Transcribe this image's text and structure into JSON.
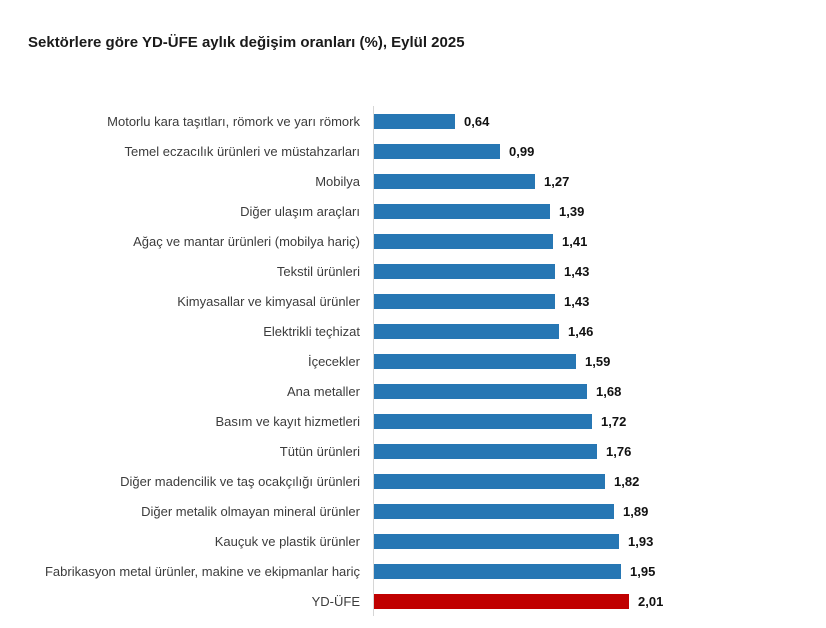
{
  "title": "Sektörlere göre YD-ÜFE aylık değişim oranları (%), Eylül 2025",
  "chart_data": {
    "type": "bar",
    "orientation": "horizontal",
    "title": "Sektörlere göre YD-ÜFE aylık değişim oranları (%), Eylül 2025",
    "xlabel": "",
    "ylabel": "",
    "xlim": [
      0,
      2.1
    ],
    "grid": false,
    "legend": false,
    "categories": [
      "Motorlu kara taşıtları, römork ve yarı römork",
      "Temel eczacılık ürünleri ve müstahzarları",
      "Mobilya",
      "Diğer ulaşım araçları",
      "Ağaç ve mantar ürünleri (mobilya hariç)",
      "Tekstil ürünleri",
      "Kimyasallar ve kimyasal ürünler",
      "Elektrikli teçhizat",
      "İçecekler",
      "Ana metaller",
      "Basım ve kayıt hizmetleri",
      "Tütün ürünleri",
      "Diğer madencilik ve taş ocakçılığı ürünleri",
      "Diğer metalik olmayan mineral ürünler",
      "Kauçuk ve plastik ürünler",
      "Fabrikasyon metal ürünler, makine ve ekipmanlar hariç",
      "YD-ÜFE"
    ],
    "values": [
      0.64,
      0.99,
      1.27,
      1.39,
      1.41,
      1.43,
      1.43,
      1.46,
      1.59,
      1.68,
      1.72,
      1.76,
      1.82,
      1.89,
      1.93,
      1.95,
      2.01
    ],
    "value_labels": [
      "0,64",
      "0,99",
      "1,27",
      "1,39",
      "1,41",
      "1,43",
      "1,43",
      "1,46",
      "1,59",
      "1,68",
      "1,72",
      "1,76",
      "1,82",
      "1,89",
      "1,93",
      "1,95",
      "2,01"
    ],
    "bar_color_default": "#2777B4",
    "bar_color_highlight": "#C00000",
    "highlight_category": "YD-ÜFE"
  }
}
